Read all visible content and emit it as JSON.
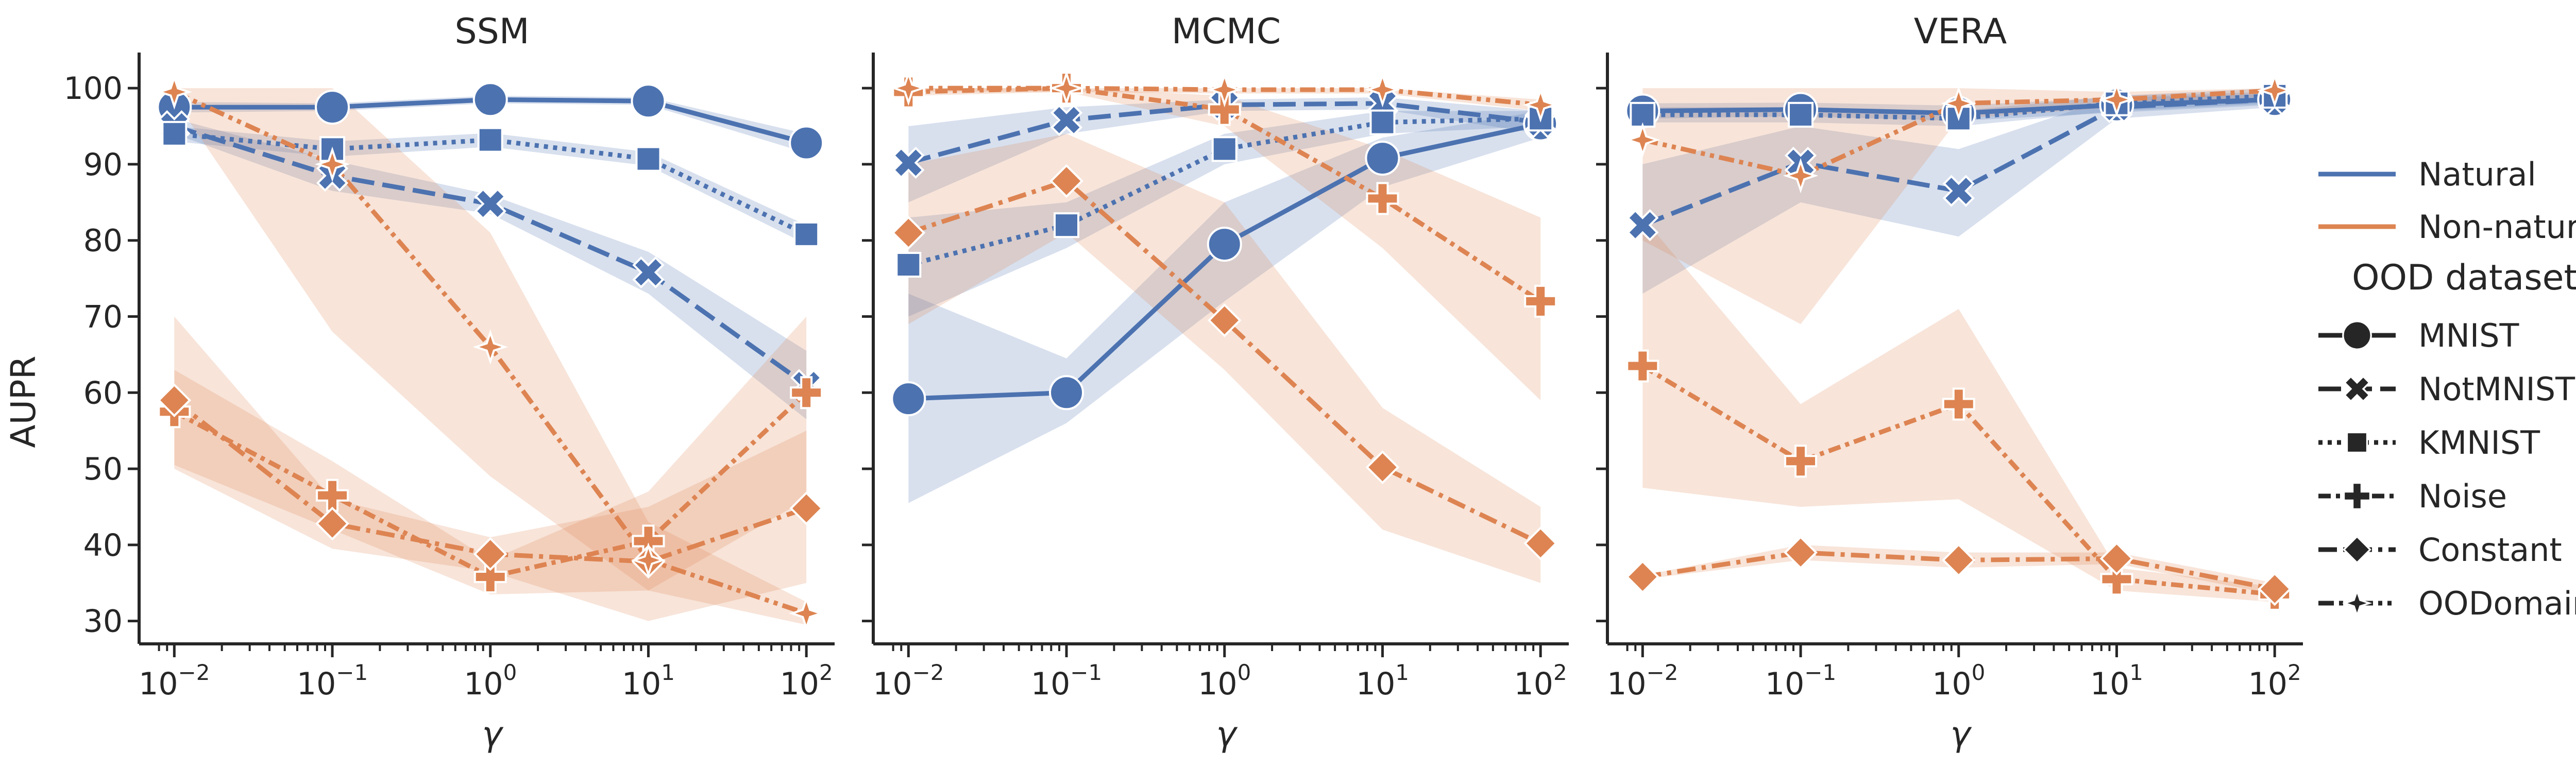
{
  "figure": {
    "ylabel": "AUPR",
    "xlabel": "γ",
    "x_ticks": [
      "10",
      "10",
      "10",
      "10",
      "10"
    ],
    "x_tick_exponents": [
      "−2",
      "−1",
      "0",
      "1",
      "2"
    ],
    "y_ticks": [
      "30",
      "40",
      "50",
      "60",
      "70",
      "80",
      "90",
      "100"
    ]
  },
  "legend": {
    "group_entries": [
      {
        "label": "Natural",
        "color": "#4c72b0"
      },
      {
        "label": "Non-natural",
        "color": "#dd8452"
      }
    ],
    "heading": "OOD dataset",
    "dataset_entries": [
      {
        "label": "MNIST",
        "dash": "solid",
        "marker": "circle"
      },
      {
        "label": "NotMNIST",
        "dash": "dashed",
        "marker": "x"
      },
      {
        "label": "KMNIST",
        "dash": "dotted",
        "marker": "square"
      },
      {
        "label": "Noise",
        "dash": "dashdot-short",
        "marker": "plus"
      },
      {
        "label": "Constant",
        "dash": "dashdot",
        "marker": "diamond"
      },
      {
        "label": "OODomain",
        "dash": "dashdotdot",
        "marker": "star4"
      }
    ]
  },
  "colors": {
    "natural": "#4c72b0",
    "non_natural": "#dd8452",
    "axis": "#262626"
  },
  "chart_data": [
    {
      "type": "line",
      "title": "SSM",
      "x_scale": "log",
      "x": [
        0.01,
        0.1,
        1,
        10,
        100
      ],
      "xlim": [
        0.0075,
        140
      ],
      "ylim": [
        27,
        104
      ],
      "xlabel": "γ",
      "ylabel": "AUPR",
      "series": [
        {
          "name": "MNIST",
          "group": "Natural",
          "values": [
            97.5,
            97.5,
            98.5,
            98.3,
            92.8
          ],
          "ci_low": [
            96.8,
            97.0,
            98.0,
            97.8,
            91.5
          ],
          "ci_high": [
            98.2,
            98.0,
            99.0,
            98.8,
            94.0
          ]
        },
        {
          "name": "NotMNIST",
          "group": "Natural",
          "values": [
            95.0,
            88.5,
            84.8,
            75.8,
            61.0
          ],
          "ci_low": [
            94.0,
            86.5,
            83.5,
            73.0,
            56.5
          ],
          "ci_high": [
            96.0,
            90.5,
            86.0,
            78.5,
            65.5
          ]
        },
        {
          "name": "KMNIST",
          "group": "Natural",
          "values": [
            94.0,
            92.0,
            93.2,
            90.7,
            80.8
          ],
          "ci_low": [
            93.0,
            91.0,
            92.3,
            89.8,
            79.5
          ],
          "ci_high": [
            95.0,
            93.0,
            94.1,
            91.6,
            82.0
          ]
        },
        {
          "name": "Noise",
          "group": "Non-natural",
          "values": [
            57.5,
            46.5,
            35.8,
            40.5,
            60.0
          ],
          "ci_low": [
            50.5,
            42.0,
            33.5,
            34.0,
            46.0
          ],
          "ci_high": [
            63.0,
            51.0,
            38.0,
            47.0,
            70.0
          ]
        },
        {
          "name": "Constant",
          "group": "Non-natural",
          "values": [
            59.0,
            42.8,
            38.8,
            37.8,
            44.8
          ],
          "ci_low": [
            50.0,
            39.5,
            36.5,
            30.0,
            35.0
          ],
          "ci_high": [
            70.0,
            46.0,
            41.0,
            45.0,
            55.0
          ]
        },
        {
          "name": "OODomain",
          "group": "Non-natural",
          "values": [
            99.5,
            90.0,
            66.0,
            38.0,
            31.0
          ],
          "ci_low": [
            98.5,
            68.0,
            49.0,
            34.0,
            29.5
          ],
          "ci_high": [
            100.0,
            100.0,
            81.0,
            43.0,
            32.5
          ]
        }
      ]
    },
    {
      "type": "line",
      "title": "MCMC",
      "x_scale": "log",
      "x": [
        0.01,
        0.1,
        1,
        10,
        100
      ],
      "xlim": [
        0.0075,
        140
      ],
      "ylim": [
        27,
        104
      ],
      "xlabel": "γ",
      "ylabel": "AUPR",
      "series": [
        {
          "name": "MNIST",
          "group": "Natural",
          "values": [
            59.2,
            60.0,
            79.5,
            90.8,
            95.3
          ],
          "ci_low": [
            45.5,
            56.0,
            72.0,
            87.0,
            93.5
          ],
          "ci_high": [
            73.0,
            64.5,
            85.0,
            93.5,
            97.0
          ]
        },
        {
          "name": "NotMNIST",
          "group": "Natural",
          "values": [
            90.2,
            95.8,
            97.8,
            98.0,
            95.5
          ],
          "ci_low": [
            85.0,
            94.0,
            97.0,
            97.2,
            94.0
          ],
          "ci_high": [
            95.0,
            97.5,
            98.5,
            98.8,
            97.0
          ]
        },
        {
          "name": "KMNIST",
          "group": "Natural",
          "values": [
            76.8,
            82.0,
            92.0,
            95.5,
            96.0
          ],
          "ci_low": [
            70.0,
            79.0,
            90.0,
            94.0,
            95.0
          ],
          "ci_high": [
            83.0,
            85.0,
            94.0,
            97.0,
            97.0
          ]
        },
        {
          "name": "Noise",
          "group": "Non-natural",
          "values": [
            99.5,
            100.0,
            97.2,
            85.5,
            72.0
          ],
          "ci_low": [
            99.0,
            99.5,
            95.0,
            79.0,
            59.0
          ],
          "ci_high": [
            100.0,
            100.0,
            99.0,
            92.0,
            83.0
          ]
        },
        {
          "name": "Constant",
          "group": "Non-natural",
          "values": [
            81.0,
            87.8,
            69.5,
            50.2,
            40.2
          ],
          "ci_low": [
            69.0,
            81.0,
            63.0,
            42.0,
            35.0
          ],
          "ci_high": [
            90.0,
            94.0,
            85.0,
            58.0,
            45.0
          ]
        },
        {
          "name": "OODomain",
          "group": "Non-natural",
          "values": [
            100.0,
            100.0,
            99.8,
            99.8,
            97.8
          ],
          "ci_low": [
            99.5,
            99.5,
            99.3,
            99.3,
            97.0
          ],
          "ci_high": [
            100.0,
            100.0,
            100.0,
            100.0,
            98.5
          ]
        }
      ]
    },
    {
      "type": "line",
      "title": "VERA",
      "x_scale": "log",
      "x": [
        0.01,
        0.1,
        1,
        10,
        100
      ],
      "xlim": [
        0.0075,
        140
      ],
      "ylim": [
        27,
        104
      ],
      "xlabel": "γ",
      "ylabel": "AUPR",
      "series": [
        {
          "name": "MNIST",
          "group": "Natural",
          "values": [
            97.0,
            97.2,
            96.7,
            97.8,
            98.5
          ],
          "ci_low": [
            96.0,
            96.3,
            95.7,
            96.8,
            97.8
          ],
          "ci_high": [
            98.0,
            98.1,
            97.7,
            98.8,
            99.2
          ]
        },
        {
          "name": "NotMNIST",
          "group": "Natural",
          "values": [
            82.0,
            90.2,
            86.5,
            97.5,
            98.5
          ],
          "ci_low": [
            73.0,
            85.0,
            80.5,
            96.0,
            97.5
          ],
          "ci_high": [
            90.0,
            95.0,
            92.0,
            99.0,
            99.5
          ]
        },
        {
          "name": "KMNIST",
          "group": "Natural",
          "values": [
            96.5,
            96.5,
            96.0,
            98.0,
            99.0
          ],
          "ci_low": [
            95.5,
            95.5,
            95.0,
            97.0,
            98.0
          ],
          "ci_high": [
            97.5,
            97.5,
            97.0,
            99.0,
            100.0
          ]
        },
        {
          "name": "Noise",
          "group": "Non-natural",
          "values": [
            63.5,
            51.0,
            58.5,
            35.5,
            33.5
          ],
          "ci_low": [
            47.5,
            45.0,
            46.0,
            34.0,
            32.5
          ],
          "ci_high": [
            83.0,
            58.5,
            71.0,
            37.0,
            34.5
          ]
        },
        {
          "name": "Constant",
          "group": "Non-natural",
          "values": [
            35.8,
            39.0,
            38.0,
            38.2,
            34.2
          ],
          "ci_low": [
            35.5,
            38.0,
            37.0,
            37.5,
            33.5
          ],
          "ci_high": [
            36.0,
            40.0,
            39.0,
            39.0,
            35.0
          ]
        },
        {
          "name": "OODomain",
          "group": "Non-natural",
          "values": [
            93.2,
            88.5,
            98.0,
            98.5,
            99.7
          ],
          "ci_low": [
            80.0,
            69.0,
            96.0,
            97.5,
            99.0
          ],
          "ci_high": [
            100.0,
            100.0,
            100.0,
            99.5,
            100.0
          ]
        }
      ]
    }
  ]
}
